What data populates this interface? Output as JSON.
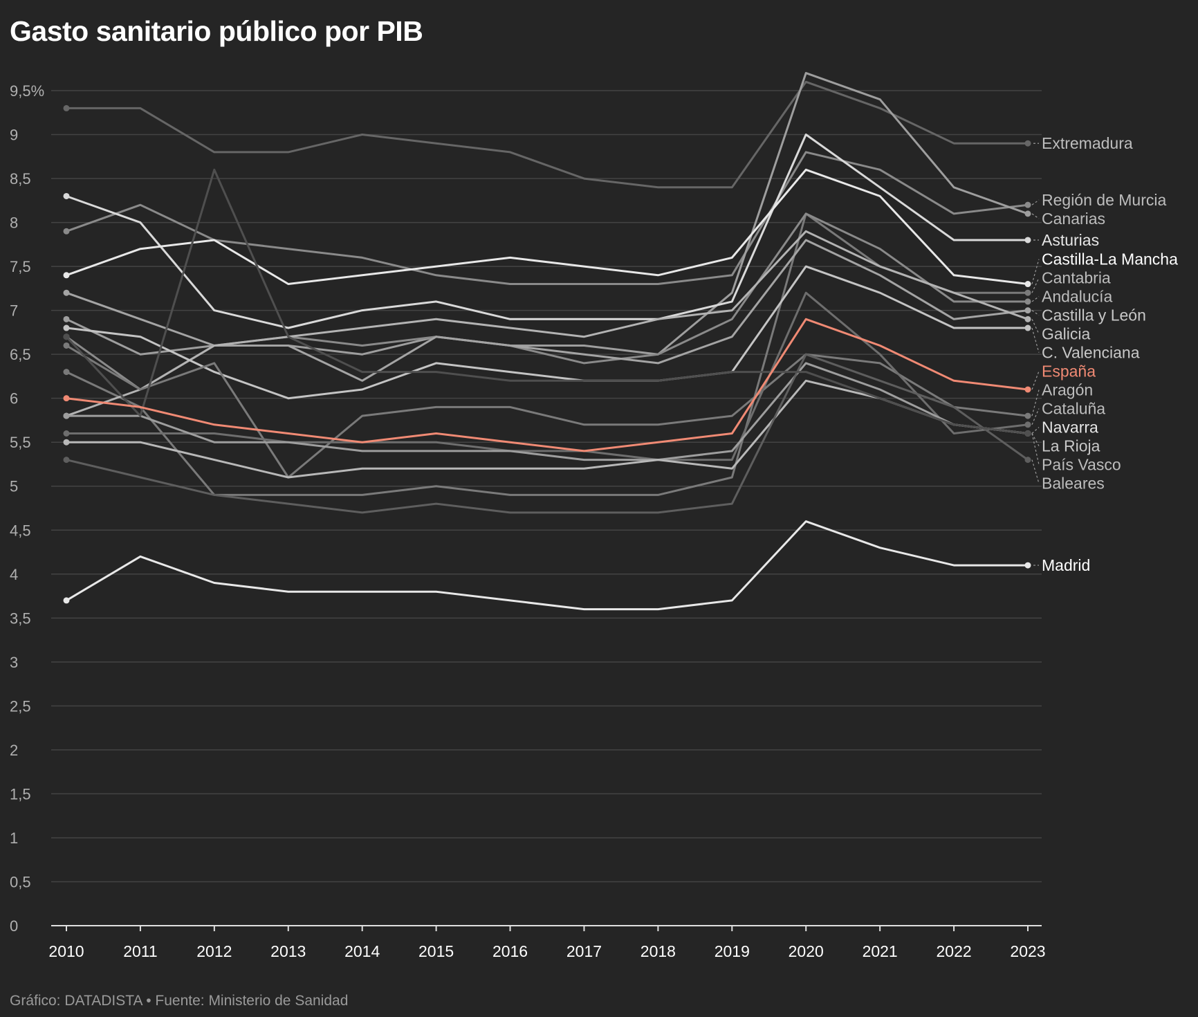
{
  "chart_data": {
    "type": "line",
    "title": "Gasto sanitario público por PIB",
    "source": "Gráfico: DATADISTA • Fuente: Ministerio de Sanidad",
    "x": [
      2010,
      2011,
      2012,
      2013,
      2014,
      2015,
      2016,
      2017,
      2018,
      2019,
      2020,
      2021,
      2022,
      2023
    ],
    "x_tick_labels": [
      "2010",
      "2011",
      "2012",
      "2013",
      "2014",
      "2015",
      "2016",
      "2017",
      "2018",
      "2019",
      "2020",
      "2021",
      "2022",
      "2023"
    ],
    "ylim": [
      0,
      9.5
    ],
    "y_ticks": [
      0,
      0.5,
      1,
      1.5,
      2,
      2.5,
      3,
      3.5,
      4,
      4.5,
      5,
      5.5,
      6,
      6.5,
      7,
      7.5,
      8,
      8.5,
      9,
      9.5
    ],
    "y_tick_labels": [
      "0",
      "0,5",
      "1",
      "1,5",
      "2",
      "2,5",
      "3",
      "3,5",
      "4",
      "4,5",
      "5",
      "5,5",
      "6",
      "6,5",
      "7",
      "7,5",
      "8",
      "8,5",
      "9",
      "9,5%"
    ],
    "grid": true,
    "highlight_color": "#f08a74",
    "series": [
      {
        "name": "Extremadura",
        "color": "#666666",
        "label_color": "#bdbdbd",
        "values": [
          9.3,
          9.3,
          8.8,
          8.8,
          9.0,
          8.9,
          8.8,
          8.5,
          8.4,
          8.4,
          9.6,
          9.3,
          8.9,
          8.9
        ]
      },
      {
        "name": "Región de Murcia",
        "color": "#8a8a8a",
        "label_color": "#bdbdbd",
        "values": [
          7.9,
          8.2,
          7.8,
          7.7,
          7.6,
          7.4,
          7.3,
          7.3,
          7.3,
          7.4,
          8.8,
          8.6,
          8.1,
          8.2
        ]
      },
      {
        "name": "Canarias",
        "color": "#9e9e9e",
        "label_color": "#bdbdbd",
        "values": [
          6.9,
          6.5,
          6.6,
          6.6,
          6.5,
          6.7,
          6.6,
          6.6,
          6.5,
          7.2,
          9.7,
          9.4,
          8.4,
          8.1
        ]
      },
      {
        "name": "Asturias",
        "color": "#d9d9d9",
        "label_color": "#e6e6e6",
        "values": [
          8.3,
          8.0,
          7.0,
          6.8,
          7.0,
          7.1,
          6.9,
          6.9,
          6.9,
          7.1,
          9.0,
          8.4,
          7.8,
          7.8
        ]
      },
      {
        "name": "Castilla-La Mancha",
        "color": "#e8e8e8",
        "label_color": "#ffffff",
        "values": [
          7.4,
          7.7,
          7.8,
          7.3,
          7.4,
          7.5,
          7.6,
          7.5,
          7.4,
          7.6,
          8.6,
          8.3,
          7.4,
          7.3
        ]
      },
      {
        "name": "Cantabria",
        "color": "#7a7a7a",
        "label_color": "#bdbdbd",
        "values": [
          6.3,
          5.9,
          4.9,
          4.9,
          4.9,
          5.0,
          4.9,
          4.9,
          4.9,
          5.1,
          8.1,
          7.5,
          7.2,
          7.2
        ]
      },
      {
        "name": "Andalucía",
        "color": "#8a8a8a",
        "label_color": "#bdbdbd",
        "values": [
          6.7,
          6.1,
          6.6,
          6.7,
          6.6,
          6.7,
          6.6,
          6.4,
          6.5,
          6.9,
          8.1,
          7.7,
          7.1,
          7.1
        ]
      },
      {
        "name": "Castilla y León",
        "color": "#a4a4a4",
        "label_color": "#c8c8c8",
        "values": [
          7.2,
          6.9,
          6.6,
          6.6,
          6.2,
          6.7,
          6.6,
          6.5,
          6.4,
          6.7,
          7.8,
          7.4,
          6.9,
          7.0
        ]
      },
      {
        "name": "Galicia",
        "color": "#b3b3b3",
        "label_color": "#c8c8c8",
        "values": [
          5.8,
          6.1,
          6.6,
          6.7,
          6.8,
          6.9,
          6.8,
          6.7,
          6.9,
          7.0,
          7.9,
          7.5,
          7.2,
          6.9
        ]
      },
      {
        "name": "C. Valenciana",
        "color": "#c4c4c4",
        "label_color": "#c8c8c8",
        "values": [
          6.8,
          6.7,
          6.3,
          6.0,
          6.1,
          6.4,
          6.3,
          6.2,
          6.2,
          6.3,
          7.5,
          7.2,
          6.8,
          6.8
        ]
      },
      {
        "name": "España",
        "color": "#f08a74",
        "label_color": "#f08a74",
        "values": [
          6.0,
          5.9,
          5.7,
          5.6,
          5.5,
          5.6,
          5.5,
          5.4,
          5.5,
          5.6,
          6.9,
          6.6,
          6.2,
          6.1
        ]
      },
      {
        "name": "Aragón",
        "color": "#7a7a7a",
        "label_color": "#bdbdbd",
        "values": [
          6.6,
          6.1,
          6.4,
          5.1,
          5.8,
          5.9,
          5.9,
          5.7,
          5.7,
          5.8,
          6.5,
          6.4,
          5.9,
          5.8
        ]
      },
      {
        "name": "Cataluña",
        "color": "#6e6e6e",
        "label_color": "#bdbdbd",
        "values": [
          5.6,
          5.6,
          5.6,
          5.5,
          5.5,
          5.5,
          5.4,
          5.4,
          5.3,
          5.3,
          7.2,
          6.5,
          5.6,
          5.7
        ]
      },
      {
        "name": "Navarra",
        "color": "#9e9e9e",
        "label_color": "#e6e6e6",
        "values": [
          5.8,
          5.8,
          5.5,
          5.5,
          5.4,
          5.4,
          5.4,
          5.3,
          5.3,
          5.4,
          6.4,
          6.1,
          5.7,
          5.6
        ]
      },
      {
        "name": "La Rioja",
        "color": "#b8b8b8",
        "label_color": "#c8c8c8",
        "values": [
          5.5,
          5.5,
          5.3,
          5.1,
          5.2,
          5.2,
          5.2,
          5.2,
          5.3,
          5.2,
          6.2,
          6.0,
          5.7,
          5.6
        ]
      },
      {
        "name": "Baleares",
        "color": "#5e5e5e",
        "label_color": "#bdbdbd",
        "values": [
          5.3,
          5.1,
          4.9,
          4.8,
          4.7,
          4.8,
          4.7,
          4.7,
          4.7,
          4.8,
          6.5,
          6.2,
          5.9,
          5.3
        ]
      },
      {
        "name": "País Vasco",
        "color": "#4f4f4f",
        "label_color": "#bdbdbd",
        "values": [
          6.7,
          5.8,
          8.6,
          6.7,
          6.3,
          6.3,
          6.2,
          6.2,
          6.2,
          6.3,
          6.3,
          6.0,
          5.7,
          5.6
        ]
      },
      {
        "name": "Madrid",
        "color": "#e8e8e8",
        "label_color": "#ffffff",
        "values": [
          3.7,
          4.2,
          3.9,
          3.8,
          3.8,
          3.8,
          3.7,
          3.6,
          3.6,
          3.7,
          4.6,
          4.3,
          4.1,
          4.1
        ]
      }
    ]
  }
}
